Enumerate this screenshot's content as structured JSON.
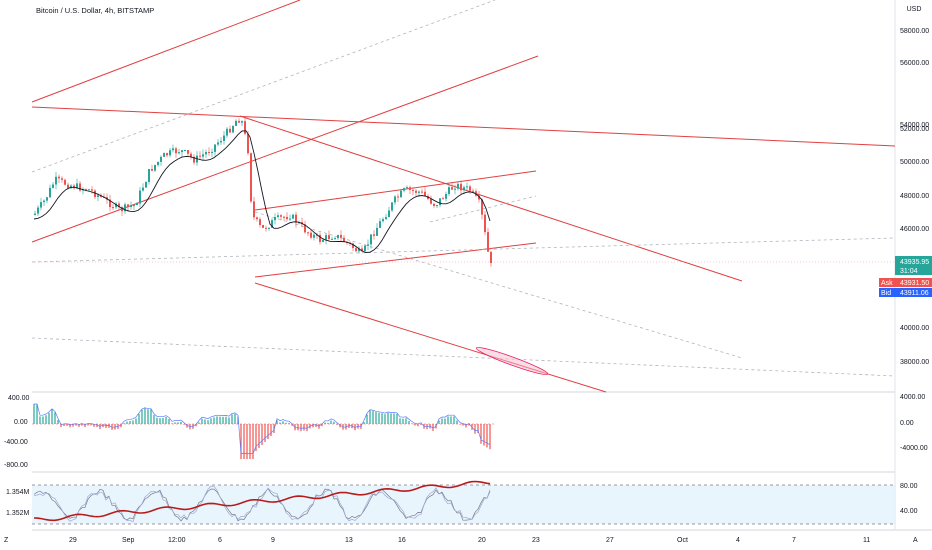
{
  "header": {
    "title": "Bitcoin / U.S. Dollar, 4h, BITSTAMP",
    "currency": "USD"
  },
  "price_axis": {
    "ticks": [
      "58000.00",
      "56000.00",
      "54000.00",
      "52000.00",
      "50000.00",
      "48000.00",
      "46000.00",
      "40000.00",
      "38000.00"
    ]
  },
  "price_labels": {
    "last": "43935.95",
    "countdown": "31:04",
    "ask_label": "Ask",
    "ask": "43931.50",
    "bid_label": "Bid",
    "bid": "43911.06"
  },
  "macd_panel": {
    "left_ticks": [
      "400.00",
      "0.00",
      "-400.00",
      "-800.00"
    ],
    "right_ticks": [
      "4000.00",
      "0.00",
      "-4000.00"
    ]
  },
  "stoch_panel": {
    "left_ticks": [
      "1.354M",
      "1.352M"
    ],
    "right_ticks": [
      "80.00",
      "40.00"
    ]
  },
  "time_axis": {
    "labels": [
      "29",
      "Sep",
      "12:00",
      "6",
      "9",
      "13",
      "16",
      "20",
      "23",
      "27",
      "Oct",
      "4",
      "7",
      "11"
    ]
  },
  "corner": {
    "left": "Z",
    "right": "A"
  },
  "colors": {
    "up": "#26a69a",
    "down": "#ef5350",
    "trendline": "#e04040",
    "ma": "#131722",
    "macd_line": "#5b7cff",
    "stoch_fill": "#e3f2fd",
    "rsi_line": "#b71c1c",
    "ask_bg": "#ef5350",
    "bid_bg": "#2962ff",
    "last_bg": "#26a69a"
  }
}
